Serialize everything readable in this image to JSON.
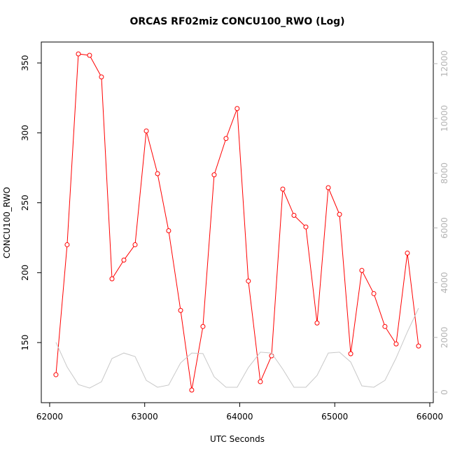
{
  "chart_data": {
    "type": "line",
    "title": "ORCAS RF02miz CONCU100_RWO (Log)",
    "x_label": "UTC Seconds",
    "y_label": "CONCU100_RWO",
    "x": [
      62066,
      62184,
      62302,
      62420,
      62545,
      62656,
      62781,
      62899,
      63017,
      63135,
      63252,
      63378,
      63495,
      63613,
      63731,
      63856,
      63973,
      64091,
      64217,
      64335,
      64453,
      64571,
      64696,
      64814,
      64932,
      65050,
      65168,
      65285,
      65411,
      65528,
      65646,
      65764,
      65882
    ],
    "series": [
      {
        "color": "#ff0000",
        "markers": true,
        "values": [
          127,
          220,
          356.5,
          355.5,
          340,
          195.6,
          209,
          220,
          301.4,
          270.8,
          230,
          173,
          116,
          161.5,
          270,
          296,
          317.4,
          194,
          122,
          140.5,
          259.8,
          241,
          232.7,
          164,
          260.8,
          241.7,
          142,
          201.6,
          185,
          161.5,
          149,
          214,
          147.5
        ]
      },
      {
        "color": "#c8c8c8",
        "markers": false,
        "axis": "y2",
        "values": [
          1820,
          920,
          280,
          150,
          380,
          1230,
          1430,
          1300,
          430,
          180,
          260,
          1070,
          1430,
          1410,
          560,
          180,
          180,
          900,
          1460,
          1430,
          840,
          180,
          180,
          610,
          1430,
          1460,
          1100,
          230,
          180,
          430,
          1250,
          2200,
          3070
        ]
      }
    ],
    "xlim": [
      61912,
      66037
    ],
    "xticks": [
      62000,
      63000,
      64000,
      65000,
      66000
    ],
    "ylim": [
      107,
      365
    ],
    "yticks": [
      150,
      200,
      250,
      300,
      350
    ],
    "y2lim": [
      -384,
      12790
    ],
    "y2ticks": [
      0,
      2000,
      4000,
      6000,
      8000,
      10000,
      12000
    ],
    "y2_tick_color": "#b4b4b4"
  }
}
